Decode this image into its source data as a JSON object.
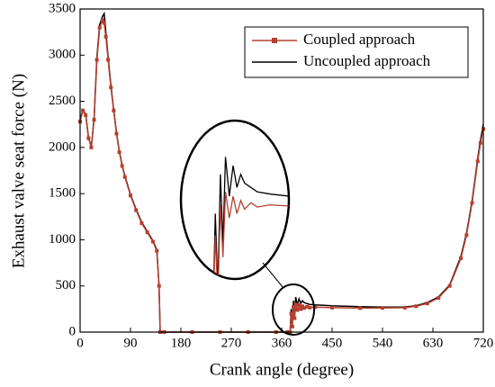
{
  "chart_data": {
    "type": "line",
    "xlabel": "Crank angle (degree)",
    "ylabel": "Exhaust valve seat force (N)",
    "x": [
      0,
      5,
      10,
      15,
      20,
      25,
      30,
      35,
      40,
      43,
      46,
      50,
      55,
      60,
      65,
      70,
      75,
      80,
      90,
      100,
      110,
      120,
      130,
      137,
      141,
      143,
      150,
      200,
      250,
      300,
      350,
      370,
      375,
      377,
      379,
      381,
      383,
      385,
      388,
      391,
      394,
      397,
      400,
      405,
      410,
      420,
      450,
      500,
      540,
      580,
      600,
      620,
      640,
      660,
      680,
      690,
      700,
      710,
      715,
      720
    ],
    "series": [
      {
        "name": "Coupled approach",
        "color": "#b5402f",
        "marker": "square",
        "values": [
          2280,
          2400,
          2350,
          2100,
          2000,
          2300,
          2950,
          3300,
          3380,
          3350,
          3200,
          2950,
          2650,
          2400,
          2150,
          1950,
          1800,
          1680,
          1480,
          1320,
          1180,
          1080,
          980,
          880,
          500,
          0,
          0,
          0,
          0,
          0,
          0,
          0,
          0,
          200,
          60,
          270,
          150,
          300,
          240,
          290,
          250,
          280,
          260,
          275,
          265,
          270,
          265,
          260,
          262,
          265,
          280,
          310,
          370,
          500,
          800,
          1050,
          1400,
          1850,
          2050,
          2200
        ]
      },
      {
        "name": "Uncoupled approach",
        "color": "#000000",
        "values": [
          2300,
          2410,
          2360,
          2110,
          2000,
          2320,
          2980,
          3330,
          3420,
          3450,
          3250,
          2980,
          2670,
          2410,
          2160,
          1960,
          1810,
          1690,
          1490,
          1330,
          1190,
          1090,
          990,
          890,
          500,
          0,
          0,
          0,
          0,
          0,
          0,
          0,
          0,
          250,
          80,
          340,
          180,
          380,
          290,
          360,
          310,
          340,
          320,
          310,
          300,
          295,
          285,
          275,
          270,
          272,
          285,
          320,
          380,
          510,
          820,
          1070,
          1420,
          1880,
          2080,
          2250
        ]
      }
    ],
    "xlim": [
      0,
      720
    ],
    "xticks": [
      0,
      90,
      180,
      270,
      360,
      450,
      540,
      630,
      720
    ],
    "ylim": [
      0,
      3500
    ],
    "yticks": [
      0,
      500,
      1000,
      1500,
      2000,
      2500,
      3000,
      3500
    ],
    "legend": "upper right"
  }
}
